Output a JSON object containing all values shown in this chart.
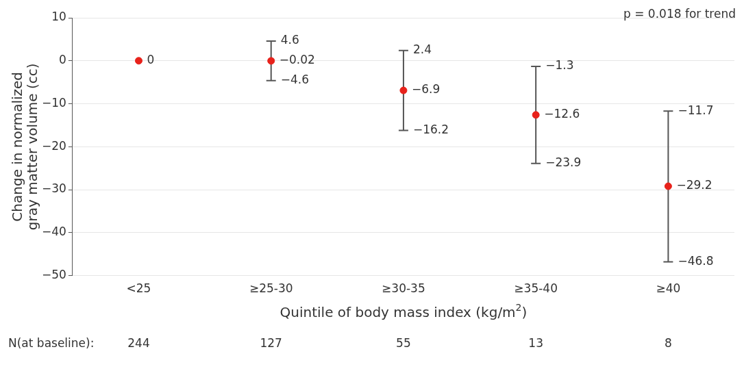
{
  "chart_data": {
    "type": "scatter",
    "categories": [
      "<25",
      "≥25-30",
      "≥30-35",
      "≥35-40",
      "≥40"
    ],
    "values": [
      0,
      -0.02,
      -6.9,
      -12.6,
      -29.2
    ],
    "value_labels": [
      "0",
      "−0.02",
      "−6.9",
      "−12.6",
      "−29.2"
    ],
    "errors": [
      null,
      [
        -4.6,
        4.6
      ],
      [
        -16.2,
        2.4
      ],
      [
        -23.9,
        -1.3
      ],
      [
        -46.8,
        -11.7
      ]
    ],
    "color": "#e8221b",
    "marker": "circle",
    "xlabel": "Quintile of body mass index (kg/m$^{2}$)",
    "ylabel": "Change in normalized gray matter volume (cc)",
    "ylim": [
      -50,
      10
    ],
    "yticks": [
      -50,
      -40,
      -30,
      -20,
      -10,
      0,
      10
    ],
    "grid": "y",
    "legend": false,
    "annotations": [
      "p = 0.018 for trend",
      "N(at baseline):",
      {
        "text": "4.6",
        "x": "≥25-30",
        "y": 4.6
      },
      {
        "text": "−4.6",
        "x": "≥25-30",
        "y": -4.6
      },
      {
        "text": "2.4",
        "x": "≥30-35",
        "y": 2.4
      },
      {
        "text": "−16.2",
        "x": "≥30-35",
        "y": -16.2
      },
      {
        "text": "−1.3",
        "x": "≥35-40",
        "y": -1.3
      },
      {
        "text": "−23.9",
        "x": "≥35-40",
        "y": -23.9
      },
      {
        "text": "−11.7",
        "x": "≥40",
        "y": -11.7
      },
      {
        "text": "−46.8",
        "x": "≥40",
        "y": -46.8
      },
      "244",
      "127",
      "55",
      "13",
      "8"
    ]
  }
}
